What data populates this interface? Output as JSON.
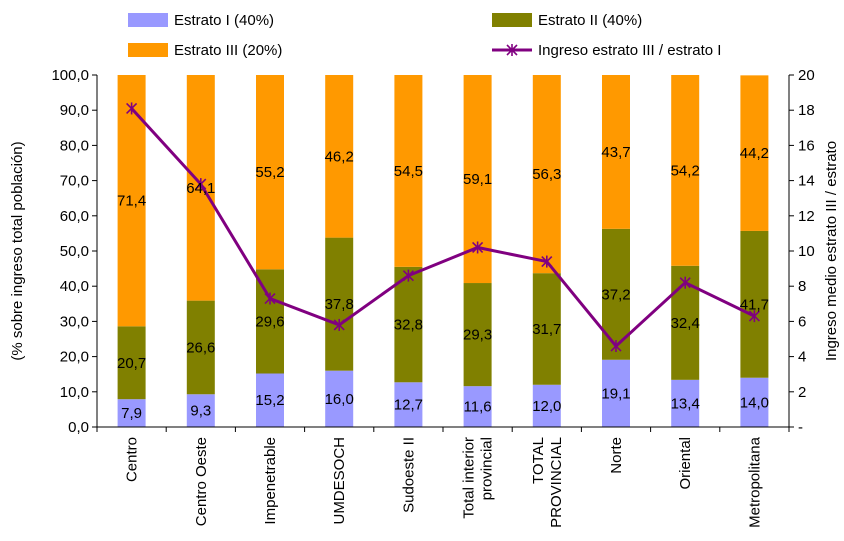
{
  "chart_data": {
    "type": "bar",
    "stacked": true,
    "categories": [
      [
        "Centro"
      ],
      [
        "Centro Oeste"
      ],
      [
        "Impenetrable"
      ],
      [
        "UMDESOCH"
      ],
      [
        "Sudoeste II"
      ],
      [
        "Total interior",
        "provincial"
      ],
      [
        "TOTAL",
        "PROVINCIAL"
      ],
      [
        "Norte"
      ],
      [
        "Oriental"
      ],
      [
        "Metropolitana"
      ]
    ],
    "series": [
      {
        "name": "Estrato I (40%)",
        "color": "#9999ff",
        "values": [
          "7,9",
          "9,3",
          "15,2",
          "16,0",
          "12,7",
          "11,6",
          "12,0",
          "19,1",
          "13,4",
          "14,0"
        ]
      },
      {
        "name": "Estrato II (40%)",
        "color": "#808000",
        "values": [
          "20,7",
          "26,6",
          "29,6",
          "37,8",
          "32,8",
          "29,3",
          "31,7",
          "37,2",
          "32,4",
          "41,7"
        ]
      },
      {
        "name": "Estrato III (20%)",
        "color": "#ff9900",
        "values": [
          "71,4",
          "64,1",
          "55,2",
          "46,2",
          "54,5",
          "59,1",
          "56,3",
          "43,7",
          "54,2",
          "44,2"
        ]
      }
    ],
    "line_series": {
      "name": "Ingreso estrato III / estrato I",
      "color": "#800080",
      "axis": "right",
      "values": [
        18.1,
        13.8,
        7.3,
        5.8,
        8.6,
        10.2,
        9.4,
        4.6,
        8.2,
        6.3
      ]
    },
    "left_axis": {
      "label": "(% sobre ingreso total población)",
      "ticks": [
        "0,0",
        "10,0",
        "20,0",
        "30,0",
        "40,0",
        "50,0",
        "60,0",
        "70,0",
        "80,0",
        "90,0",
        "100,0"
      ],
      "range": [
        0,
        100
      ]
    },
    "right_axis": {
      "label": "Ingreso medio estrato III / estrato",
      "ticks": [
        "-",
        "2",
        "4",
        "6",
        "8",
        "10",
        "12",
        "14",
        "16",
        "18",
        "20"
      ],
      "range": [
        0,
        20
      ]
    },
    "legend_position": "top",
    "grid": false
  }
}
